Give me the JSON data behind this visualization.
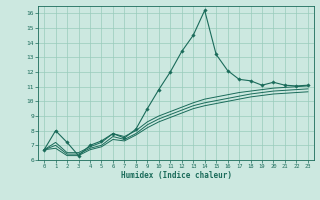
{
  "xlabel": "Humidex (Indice chaleur)",
  "bg_color": "#cce8e0",
  "grid_color": "#99ccbb",
  "line_color": "#1a6b5a",
  "xlim": [
    -0.5,
    23.5
  ],
  "ylim": [
    6,
    16.5
  ],
  "yticks": [
    6,
    7,
    8,
    9,
    10,
    11,
    12,
    13,
    14,
    15,
    16
  ],
  "xticks": [
    0,
    1,
    2,
    3,
    4,
    5,
    6,
    7,
    8,
    9,
    10,
    11,
    12,
    13,
    14,
    15,
    16,
    17,
    18,
    19,
    20,
    21,
    22,
    23
  ],
  "series": {
    "main": [
      6.7,
      8.0,
      7.2,
      6.3,
      7.0,
      7.3,
      7.8,
      7.5,
      8.1,
      9.5,
      10.8,
      12.0,
      13.4,
      14.5,
      16.2,
      13.2,
      12.1,
      11.5,
      11.4,
      11.1,
      11.3,
      11.1,
      11.05,
      11.1
    ],
    "line1": [
      6.7,
      7.2,
      6.5,
      6.5,
      6.9,
      7.2,
      7.8,
      7.6,
      8.0,
      8.6,
      9.0,
      9.3,
      9.6,
      9.9,
      10.15,
      10.3,
      10.45,
      10.6,
      10.7,
      10.8,
      10.9,
      10.95,
      11.0,
      11.05
    ],
    "line2": [
      6.7,
      7.0,
      6.4,
      6.4,
      6.8,
      7.0,
      7.6,
      7.4,
      7.8,
      8.4,
      8.8,
      9.1,
      9.4,
      9.7,
      9.9,
      10.05,
      10.2,
      10.35,
      10.5,
      10.6,
      10.7,
      10.75,
      10.8,
      10.85
    ],
    "line3": [
      6.7,
      6.8,
      6.3,
      6.3,
      6.7,
      6.9,
      7.4,
      7.3,
      7.7,
      8.2,
      8.6,
      8.9,
      9.2,
      9.5,
      9.7,
      9.85,
      10.0,
      10.15,
      10.3,
      10.4,
      10.5,
      10.55,
      10.6,
      10.65
    ]
  }
}
